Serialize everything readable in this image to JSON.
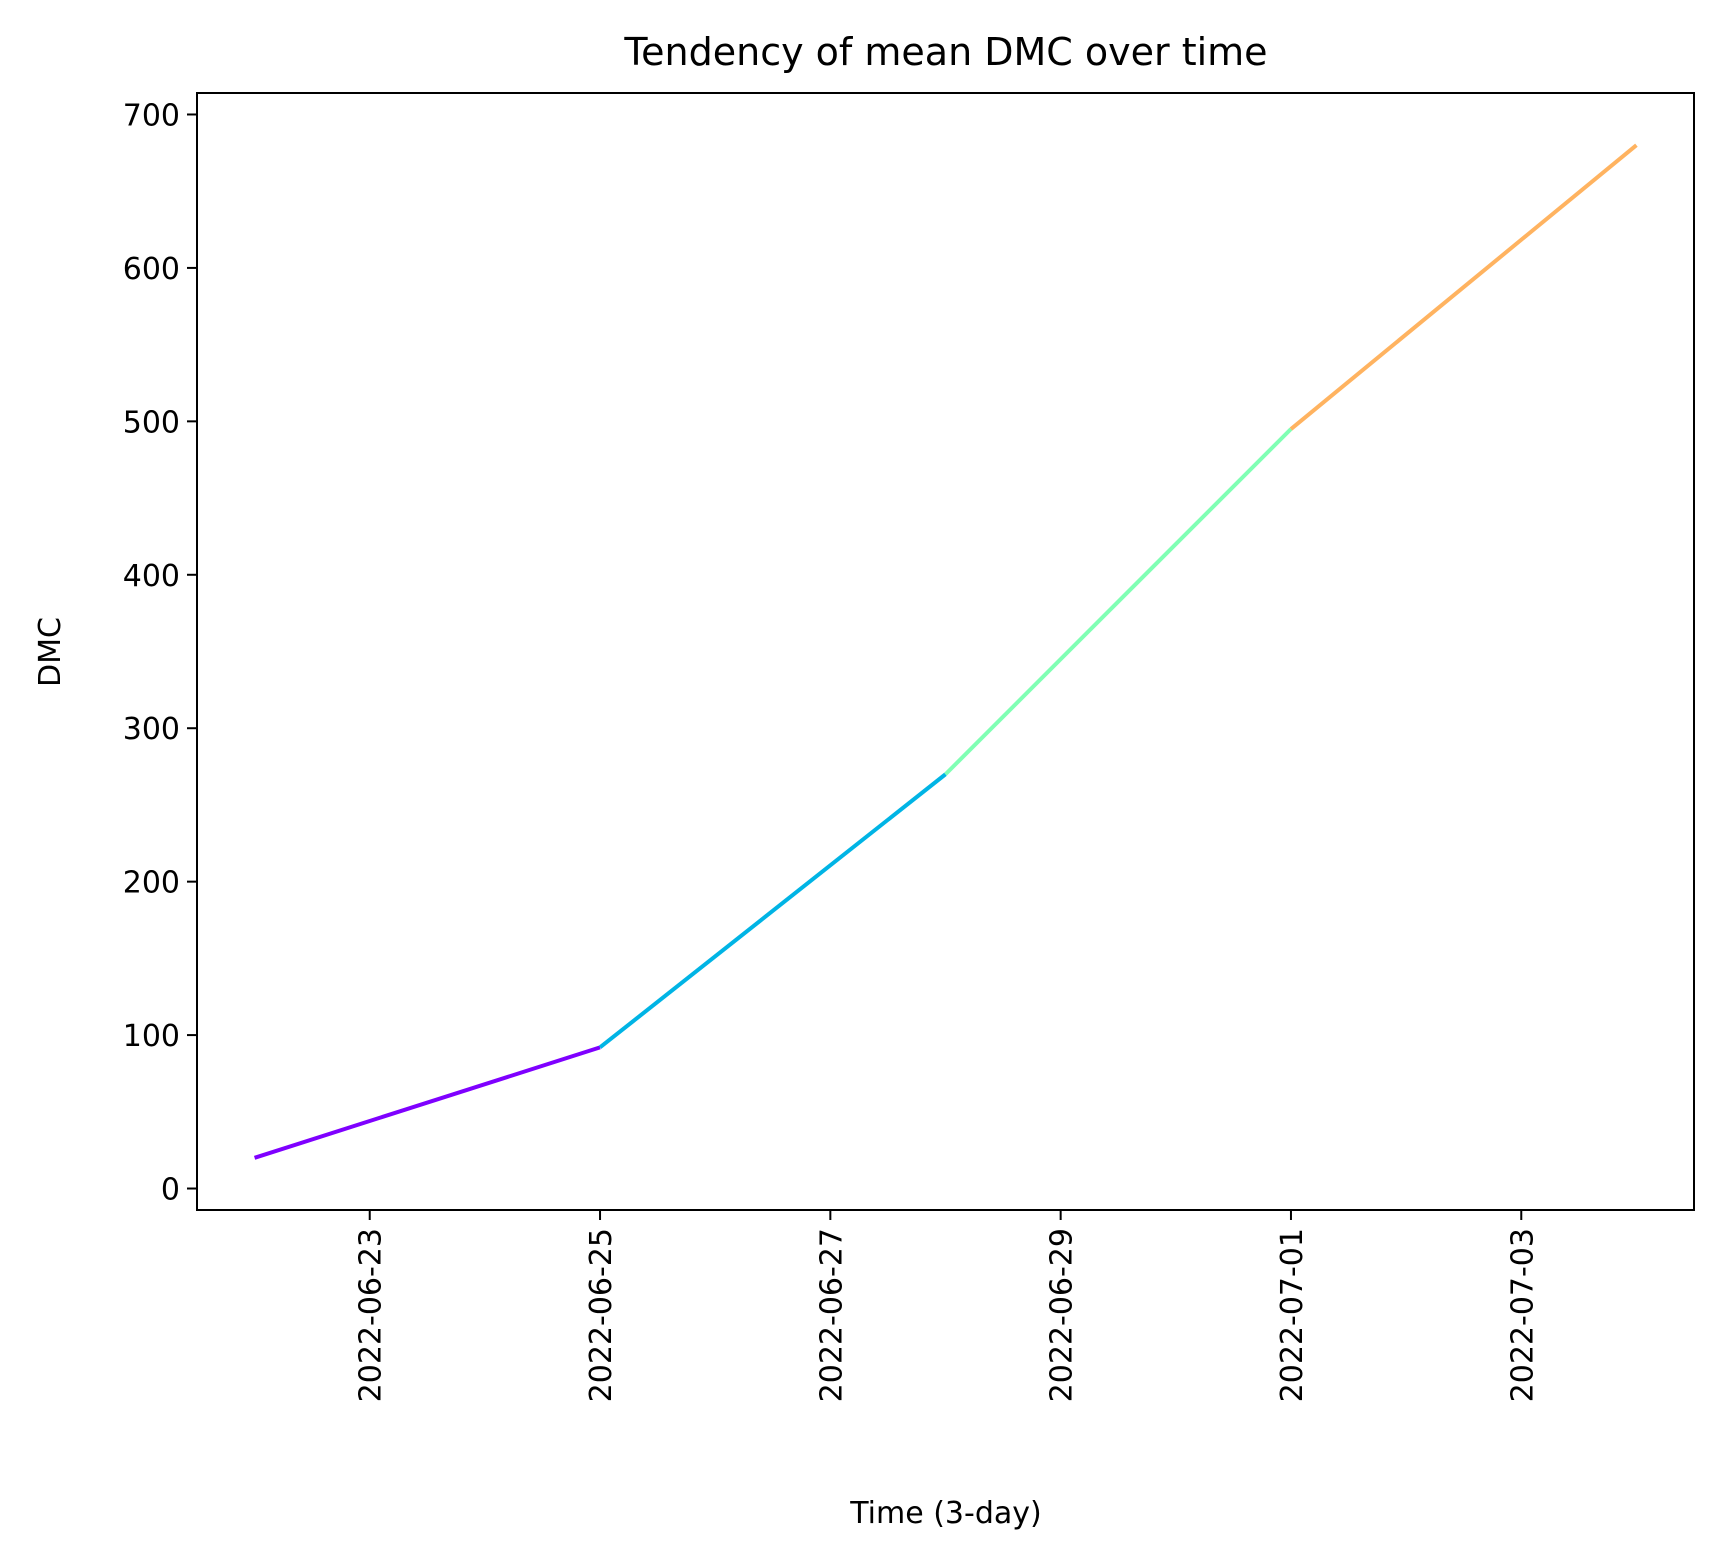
{
  "chart_data": {
    "type": "line",
    "title": "Tendency of mean DMC over time",
    "xlabel": "Time (3-day)",
    "ylabel": "DMC",
    "x_type": "date",
    "xlim": [
      "2022-06-21T12:00",
      "2022-07-04T12:00"
    ],
    "ylim": [
      -14,
      714
    ],
    "x_ticks": [
      "2022-06-23",
      "2022-06-25",
      "2022-06-27",
      "2022-06-29",
      "2022-07-01",
      "2022-07-03"
    ],
    "y_ticks": [
      0,
      100,
      200,
      300,
      400,
      500,
      600,
      700
    ],
    "grid": false,
    "legend": "none",
    "points": [
      {
        "x": "2022-06-22",
        "y": 20
      },
      {
        "x": "2022-06-25",
        "y": 92
      },
      {
        "x": "2022-06-28",
        "y": 270
      },
      {
        "x": "2022-07-01",
        "y": 495
      },
      {
        "x": "2022-07-04",
        "y": 680
      }
    ],
    "segment_colors": [
      "#7f00ff",
      "#00b4e5",
      "#80ffb4",
      "#ffb360"
    ]
  }
}
